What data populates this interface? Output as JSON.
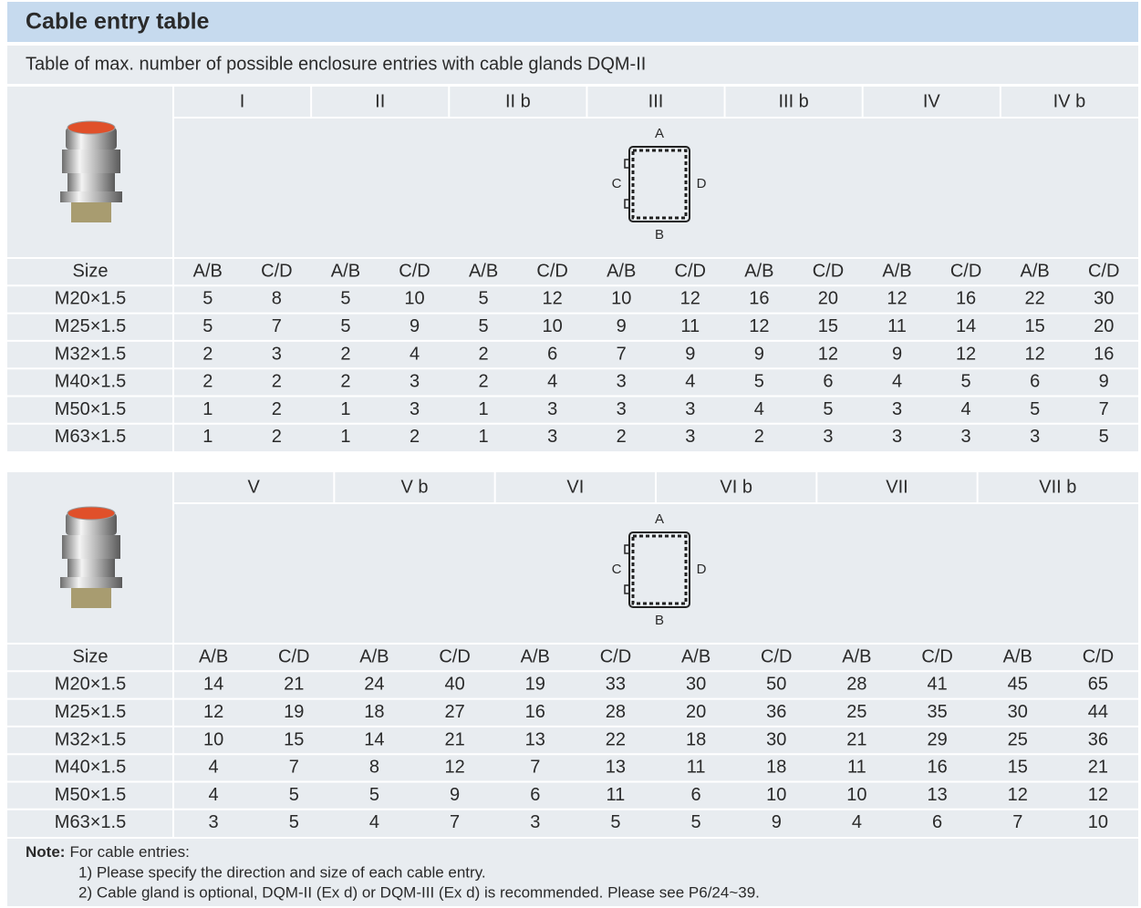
{
  "header": {
    "title": "Cable entry table",
    "subtitle": "Table of max. number of possible enclosure entries with cable glands DQM-II"
  },
  "tables": [
    {
      "types": [
        "I",
        "II",
        "II b",
        "III",
        "III b",
        "IV",
        "IV b"
      ],
      "diagram_labels": {
        "top": "A",
        "bottom": "B",
        "left": "C",
        "right": "D"
      },
      "size_label": "Size",
      "sub_headers": [
        "A/B",
        "C/D"
      ],
      "rows": [
        {
          "size": "M20×1.5",
          "values": [
            5,
            8,
            5,
            10,
            5,
            12,
            10,
            12,
            16,
            20,
            12,
            16,
            22,
            30
          ]
        },
        {
          "size": "M25×1.5",
          "values": [
            5,
            7,
            5,
            9,
            5,
            10,
            9,
            11,
            12,
            15,
            11,
            14,
            15,
            20
          ]
        },
        {
          "size": "M32×1.5",
          "values": [
            2,
            3,
            2,
            4,
            2,
            6,
            7,
            9,
            9,
            12,
            9,
            12,
            12,
            16
          ]
        },
        {
          "size": "M40×1.5",
          "values": [
            2,
            2,
            2,
            3,
            2,
            4,
            3,
            4,
            5,
            6,
            4,
            5,
            6,
            9
          ]
        },
        {
          "size": "M50×1.5",
          "values": [
            1,
            2,
            1,
            3,
            1,
            3,
            3,
            3,
            4,
            5,
            3,
            4,
            5,
            7
          ]
        },
        {
          "size": "M63×1.5",
          "values": [
            1,
            2,
            1,
            2,
            1,
            3,
            2,
            3,
            2,
            3,
            3,
            3,
            3,
            5
          ]
        }
      ]
    },
    {
      "types": [
        "V",
        "V b",
        "VI",
        "VI b",
        "VII",
        "VII b"
      ],
      "diagram_labels": {
        "top": "A",
        "bottom": "B",
        "left": "C",
        "right": "D"
      },
      "size_label": "Size",
      "sub_headers": [
        "A/B",
        "C/D"
      ],
      "rows": [
        {
          "size": "M20×1.5",
          "values": [
            14,
            21,
            24,
            40,
            19,
            33,
            30,
            50,
            28,
            41,
            45,
            65
          ]
        },
        {
          "size": "M25×1.5",
          "values": [
            12,
            19,
            18,
            27,
            16,
            28,
            20,
            36,
            25,
            35,
            30,
            44
          ]
        },
        {
          "size": "M32×1.5",
          "values": [
            10,
            15,
            14,
            21,
            13,
            22,
            18,
            30,
            21,
            29,
            25,
            36
          ]
        },
        {
          "size": "M40×1.5",
          "values": [
            4,
            7,
            8,
            12,
            7,
            13,
            11,
            18,
            11,
            16,
            15,
            21
          ]
        },
        {
          "size": "M50×1.5",
          "values": [
            4,
            5,
            5,
            9,
            6,
            11,
            6,
            10,
            10,
            13,
            12,
            12
          ]
        },
        {
          "size": "M63×1.5",
          "values": [
            3,
            5,
            4,
            7,
            3,
            5,
            5,
            9,
            4,
            6,
            7,
            10
          ]
        }
      ]
    }
  ],
  "note": {
    "label": "Note:",
    "text": "For cable entries:",
    "items": [
      "1) Please specify the direction and size of each cable entry.",
      "2) Cable gland is optional, DQM-II (Ex d) or DQM-III (Ex d) is recommended. Please see P6/24~39."
    ]
  }
}
